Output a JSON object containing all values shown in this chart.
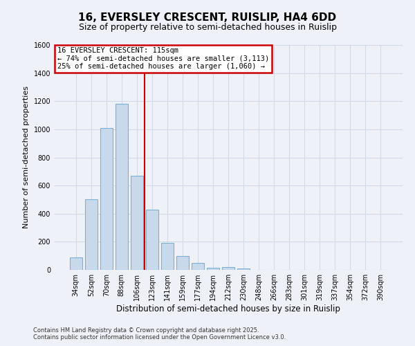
{
  "title_line1": "16, EVERSLEY CRESCENT, RUISLIP, HA4 6DD",
  "title_line2": "Size of property relative to semi-detached houses in Ruislip",
  "xlabel": "Distribution of semi-detached houses by size in Ruislip",
  "ylabel": "Number of semi-detached properties",
  "categories": [
    "34sqm",
    "52sqm",
    "70sqm",
    "88sqm",
    "106sqm",
    "123sqm",
    "141sqm",
    "159sqm",
    "177sqm",
    "194sqm",
    "212sqm",
    "230sqm",
    "248sqm",
    "266sqm",
    "283sqm",
    "301sqm",
    "319sqm",
    "337sqm",
    "354sqm",
    "372sqm",
    "390sqm"
  ],
  "values": [
    90,
    500,
    1010,
    1180,
    670,
    430,
    190,
    100,
    50,
    15,
    20,
    10,
    0,
    0,
    0,
    0,
    0,
    0,
    0,
    0,
    0
  ],
  "bar_color": "#c9d9ec",
  "bar_edge_color": "#7bafd4",
  "red_line_index": 5,
  "ylim": [
    0,
    1600
  ],
  "yticks": [
    0,
    200,
    400,
    600,
    800,
    1000,
    1200,
    1400,
    1600
  ],
  "property_label": "16 EVERSLEY CRESCENT: 115sqm",
  "annotation_smaller": "← 74% of semi-detached houses are smaller (3,113)",
  "annotation_larger": "25% of semi-detached houses are larger (1,060) →",
  "annotation_box_color": "#ffffff",
  "annotation_box_edge": "#cc0000",
  "red_line_color": "#cc0000",
  "grid_color": "#d0d8e8",
  "background_color": "#eef2f8",
  "footnote1": "Contains HM Land Registry data © Crown copyright and database right 2025.",
  "footnote2": "Contains public sector information licensed under the Open Government Licence v3.0.",
  "title_fontsize": 11,
  "subtitle_fontsize": 9,
  "ylabel_fontsize": 8,
  "xlabel_fontsize": 8.5,
  "tick_fontsize": 7,
  "annotation_fontsize": 7.5,
  "footnote_fontsize": 6
}
